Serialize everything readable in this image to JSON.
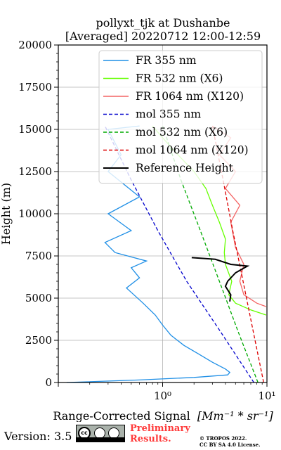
{
  "chart_data": {
    "type": "line",
    "title_line1": "pollyxt_tjk at Dushanbe",
    "title_line2": "[Averaged] 20220712 12:00-12:59",
    "xlabel": "Range-Corrected Signal",
    "xlabel_unit": "[Mm⁻¹ * sr⁻¹]",
    "ylabel": "Height (m)",
    "xscale": "log",
    "xlim": [
      0.1,
      10
    ],
    "ylim": [
      0,
      20000
    ],
    "grid": true,
    "legend_position": "top-right",
    "xtick_labels": [
      "10⁰",
      "10¹"
    ],
    "ytick_labels": [
      "0",
      "2500",
      "5000",
      "7500",
      "10000",
      "12500",
      "15000",
      "17500",
      "20000"
    ],
    "series": [
      {
        "name": "FR 355 nm",
        "color": "#1f8fe6",
        "style": "solid",
        "points": [
          [
            0.12,
            0
          ],
          [
            0.6,
            150
          ],
          [
            2.0,
            300
          ],
          [
            4.2,
            450
          ],
          [
            4.4,
            600
          ],
          [
            4.0,
            800
          ],
          [
            3.0,
            1200
          ],
          [
            2.2,
            1700
          ],
          [
            1.6,
            2200
          ],
          [
            1.2,
            2800
          ],
          [
            1.0,
            3400
          ],
          [
            0.85,
            4000
          ],
          [
            0.65,
            4700
          ],
          [
            0.45,
            5600
          ],
          [
            0.6,
            6200
          ],
          [
            0.5,
            6800
          ],
          [
            0.7,
            7200
          ],
          [
            0.35,
            7700
          ],
          [
            0.28,
            8300
          ],
          [
            0.5,
            9000
          ],
          [
            0.3,
            10000
          ],
          [
            0.6,
            11000
          ],
          [
            0.3,
            12500
          ],
          [
            0.4,
            13500
          ],
          [
            0.3,
            15000
          ],
          [
            0.6,
            15200
          ]
        ]
      },
      {
        "name": "FR 532 nm (X6)",
        "color": "#66ff00",
        "style": "solid",
        "points": [
          [
            9.8,
            4000
          ],
          [
            7.0,
            4300
          ],
          [
            5.0,
            4700
          ],
          [
            4.3,
            5200
          ],
          [
            4.6,
            6000
          ],
          [
            4.0,
            7000
          ],
          [
            3.9,
            7700
          ],
          [
            4.0,
            8500
          ],
          [
            3.5,
            9500
          ],
          [
            3.0,
            10500
          ],
          [
            2.6,
            11500
          ],
          [
            2.0,
            12500
          ],
          [
            1.4,
            13500
          ],
          [
            1.0,
            14500
          ],
          [
            0.8,
            15200
          ]
        ]
      },
      {
        "name": "FR 1064 nm (X120)",
        "color": "#f46464",
        "style": "solid",
        "points": [
          [
            9.8,
            4500
          ],
          [
            8.0,
            4700
          ],
          [
            6.0,
            5200
          ],
          [
            5.5,
            6000
          ],
          [
            6.0,
            7000
          ],
          [
            5.0,
            8000
          ],
          [
            4.5,
            9500
          ],
          [
            5.5,
            10500
          ],
          [
            4.0,
            11500
          ],
          [
            5.0,
            12500
          ],
          [
            3.5,
            13500
          ],
          [
            4.5,
            14500
          ],
          [
            3.0,
            15200
          ]
        ]
      },
      {
        "name": "mol 355 nm",
        "color": "#0000cc",
        "style": "dashed",
        "points": [
          [
            7.5,
            0
          ],
          [
            3.6,
            3000
          ],
          [
            1.7,
            6000
          ],
          [
            0.9,
            9000
          ],
          [
            0.5,
            12000
          ],
          [
            0.28,
            15200
          ]
        ]
      },
      {
        "name": "mol 532 nm (X6)",
        "color": "#00aa00",
        "style": "dashed",
        "points": [
          [
            8.2,
            0
          ],
          [
            5.3,
            3000
          ],
          [
            3.5,
            6000
          ],
          [
            2.3,
            9000
          ],
          [
            1.5,
            12000
          ],
          [
            1.0,
            15200
          ]
        ]
      },
      {
        "name": "mol 1064 nm (X120)",
        "color": "#dd0000",
        "style": "dashed",
        "points": [
          [
            9.3,
            0
          ],
          [
            7.4,
            3000
          ],
          [
            5.9,
            6000
          ],
          [
            4.7,
            9000
          ],
          [
            3.8,
            12000
          ],
          [
            3.0,
            15200
          ]
        ]
      },
      {
        "name": "Reference Height",
        "color": "#000000",
        "style": "solid",
        "points": [
          [
            1.9,
            7400
          ],
          [
            3.2,
            7300
          ],
          [
            4.5,
            7000
          ],
          [
            6.5,
            6900
          ],
          [
            5.0,
            6500
          ],
          [
            4.2,
            6000
          ],
          [
            4.0,
            5700
          ],
          [
            4.5,
            5200
          ],
          [
            4.4,
            4800
          ]
        ]
      }
    ]
  },
  "footer": {
    "version": "Version: 3.5",
    "preliminary_line1": "Preliminary",
    "preliminary_line2": "Results.",
    "tropos_line1": "© TROPOS 2022.",
    "tropos_line2": "CC BY SA 4.0 License."
  }
}
